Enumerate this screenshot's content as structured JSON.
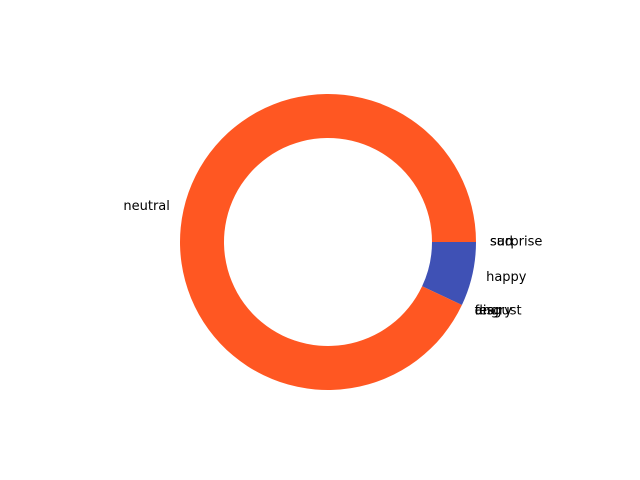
{
  "chart_data": {
    "type": "pie",
    "style": "donut",
    "start_angle_deg": 0,
    "counterclock": false,
    "slices": [
      {
        "label": "sad",
        "value": 0,
        "color": "#5c6bc0"
      },
      {
        "label": "surprise",
        "value": 0,
        "color": "#7e57c2"
      },
      {
        "label": "happy",
        "value": 0.07,
        "color": "#3f51b5"
      },
      {
        "label": "fear",
        "value": 0,
        "color": "#26a69a"
      },
      {
        "label": "disgust",
        "value": 0,
        "color": "#8d6e63"
      },
      {
        "label": "angry",
        "value": 0,
        "color": "#ef5350"
      },
      {
        "label": "neutral",
        "value": 0.93,
        "color": "#ff5722"
      }
    ]
  }
}
